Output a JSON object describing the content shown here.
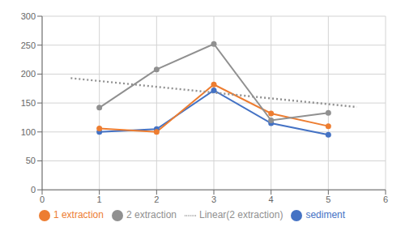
{
  "chart_data": {
    "type": "line",
    "x": [
      1,
      2,
      3,
      4,
      5
    ],
    "series": [
      {
        "name": "sediment",
        "color": "#4472C4",
        "values": [
          100,
          105,
          172,
          115,
          95
        ],
        "marker": "circle",
        "line_style": "solid"
      },
      {
        "name": "1 extraction",
        "color": "#ED7D31",
        "values": [
          106,
          100,
          182,
          132,
          110
        ],
        "marker": "circle",
        "line_style": "solid"
      },
      {
        "name": "2 extraction",
        "color": "#909090",
        "values": [
          142,
          208,
          252,
          120,
          133
        ],
        "marker": "circle",
        "line_style": "solid"
      },
      {
        "name": "Linear(2 extraction)",
        "color": "#909090",
        "x": [
          0.5,
          5.5
        ],
        "values": [
          193,
          143
        ],
        "marker": "none",
        "line_style": "dotted"
      }
    ],
    "xlim": [
      0,
      6
    ],
    "ylim": [
      0,
      300
    ],
    "xticks": [
      0,
      1,
      2,
      3,
      4,
      5,
      6
    ],
    "yticks": [
      0,
      50,
      100,
      150,
      200,
      250,
      300
    ],
    "grid": true,
    "legend": "bottom"
  }
}
